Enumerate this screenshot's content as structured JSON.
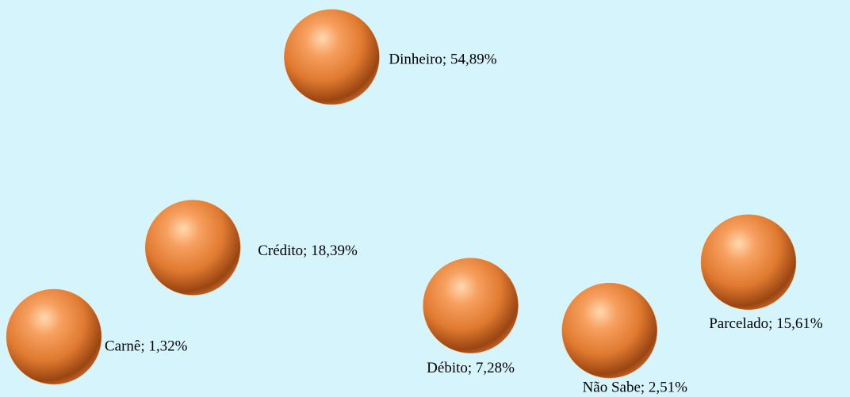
{
  "chart_data": {
    "type": "scatter",
    "categories": [
      "Carnê",
      "Crédito",
      "Dinheiro",
      "Débito",
      "Não Sabe",
      "Parcelado"
    ],
    "values": [
      1.32,
      18.39,
      54.89,
      7.28,
      2.51,
      15.61
    ],
    "value_labels": [
      "Carnê; 1,32%",
      "Crédito; 18,39%",
      "Dinheiro; 54,89%",
      "Débito; 7,28%",
      "Não Sabe; 2,51%",
      "Parcelado; 15,61%"
    ],
    "color": "#f08a3c",
    "ylim": [
      0,
      60
    ]
  }
}
